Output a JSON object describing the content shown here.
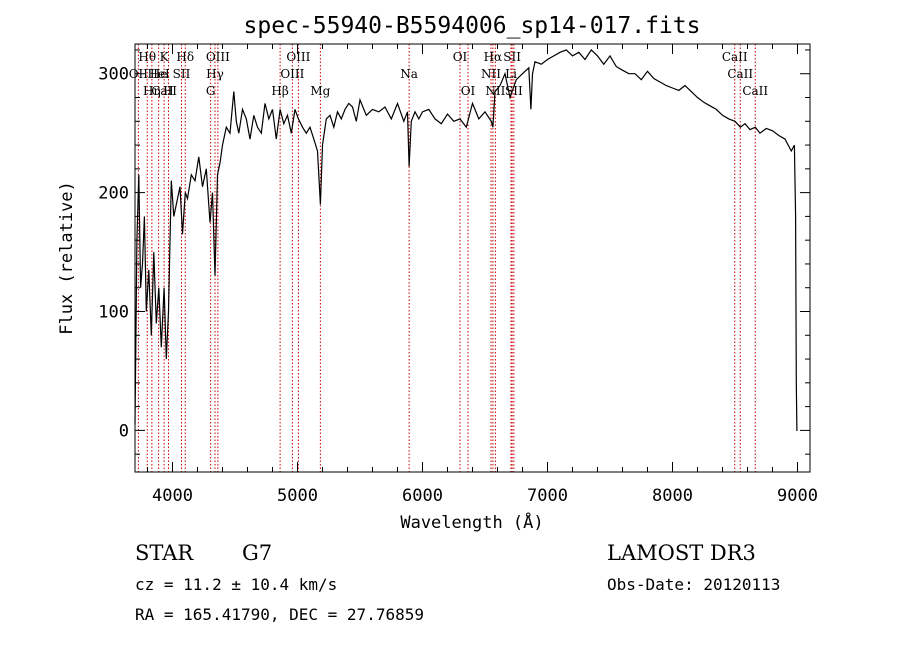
{
  "chart_data": {
    "type": "line",
    "title": "spec-55940-B5594006_sp14-017.fits",
    "xlabel": "Wavelength (Å)",
    "ylabel": "Flux (relative)",
    "xlim": [
      3700,
      9100
    ],
    "ylim": [
      -35,
      325
    ],
    "x_ticks": [
      4000,
      5000,
      6000,
      7000,
      8000,
      9000
    ],
    "y_ticks": [
      0,
      100,
      200,
      300
    ],
    "line_color": "#000000",
    "marker_color": "#cc0000",
    "series": [
      {
        "name": "flux",
        "x": [
          3700,
          3715,
          3730,
          3745,
          3760,
          3775,
          3790,
          3810,
          3830,
          3850,
          3870,
          3890,
          3910,
          3933,
          3950,
          3968,
          3990,
          4010,
          4030,
          4060,
          4080,
          4102,
          4120,
          4150,
          4180,
          4210,
          4240,
          4270,
          4300,
          4320,
          4340,
          4360,
          4380,
          4400,
          4430,
          4460,
          4490,
          4510,
          4530,
          4560,
          4590,
          4620,
          4650,
          4680,
          4710,
          4740,
          4770,
          4800,
          4830,
          4861,
          4890,
          4920,
          4950,
          4980,
          5007,
          5040,
          5070,
          5100,
          5130,
          5160,
          5183,
          5200,
          5230,
          5260,
          5290,
          5320,
          5350,
          5380,
          5410,
          5440,
          5470,
          5500,
          5550,
          5600,
          5650,
          5700,
          5750,
          5800,
          5850,
          5880,
          5893,
          5910,
          5940,
          5970,
          6000,
          6050,
          6100,
          6150,
          6200,
          6250,
          6300,
          6350,
          6400,
          6450,
          6500,
          6550,
          6563,
          6580,
          6620,
          6660,
          6700,
          6750,
          6800,
          6850,
          6867,
          6880,
          6900,
          6950,
          7000,
          7050,
          7100,
          7150,
          7200,
          7250,
          7300,
          7350,
          7400,
          7450,
          7500,
          7550,
          7600,
          7650,
          7700,
          7750,
          7800,
          7850,
          7900,
          7950,
          8000,
          8050,
          8100,
          8150,
          8200,
          8250,
          8300,
          8350,
          8400,
          8450,
          8500,
          8542,
          8580,
          8620,
          8662,
          8700,
          8750,
          8800,
          8850,
          8900,
          8950,
          8975,
          8985,
          8990,
          8995,
          9000
        ],
        "values": [
          5,
          160,
          215,
          120,
          140,
          180,
          100,
          135,
          80,
          150,
          90,
          120,
          70,
          120,
          60,
          100,
          210,
          180,
          190,
          205,
          165,
          200,
          195,
          215,
          210,
          230,
          205,
          220,
          175,
          200,
          130,
          215,
          225,
          240,
          255,
          250,
          285,
          260,
          250,
          270,
          262,
          245,
          265,
          255,
          250,
          275,
          262,
          270,
          245,
          270,
          258,
          265,
          250,
          270,
          262,
          255,
          250,
          255,
          245,
          235,
          190,
          240,
          262,
          265,
          255,
          268,
          262,
          270,
          275,
          272,
          260,
          278,
          265,
          270,
          268,
          272,
          262,
          275,
          260,
          268,
          222,
          260,
          268,
          262,
          268,
          270,
          262,
          258,
          266,
          260,
          262,
          255,
          275,
          262,
          268,
          260,
          255,
          285,
          290,
          300,
          280,
          295,
          300,
          305,
          270,
          300,
          310,
          308,
          312,
          315,
          318,
          320,
          315,
          318,
          312,
          320,
          315,
          308,
          315,
          306,
          303,
          300,
          300,
          295,
          302,
          296,
          293,
          290,
          288,
          286,
          290,
          285,
          280,
          276,
          273,
          270,
          265,
          262,
          260,
          255,
          258,
          253,
          255,
          250,
          254,
          252,
          248,
          245,
          235,
          240,
          180,
          40,
          0,
          0
        ]
      }
    ],
    "line_markers": [
      {
        "name": "Hθ",
        "x": 3798,
        "row": 1
      },
      {
        "name": "OII",
        "x": 3727,
        "row": 2
      },
      {
        "name": "Hη",
        "x": 3835,
        "row": 3
      },
      {
        "name": "CaII",
        "x": 3933,
        "row": 3
      },
      {
        "name": "He",
        "x": 3889,
        "row": 2
      },
      {
        "name": "HeI",
        "x": 3889,
        "row": 2
      },
      {
        "name": "K",
        "x": 3933,
        "row": 1
      },
      {
        "name": "H",
        "x": 3968,
        "row": 3
      },
      {
        "name": "SII",
        "x": 4072,
        "row": 2
      },
      {
        "name": "Hδ",
        "x": 4102,
        "row": 1
      },
      {
        "name": "OIII",
        "x": 4363,
        "row": 1
      },
      {
        "name": "Hγ",
        "x": 4340,
        "row": 2
      },
      {
        "name": "G",
        "x": 4305,
        "row": 3
      },
      {
        "name": "Hβ",
        "x": 4861,
        "row": 3
      },
      {
        "name": "OIII",
        "x": 4959,
        "row": 2
      },
      {
        "name": "OIII",
        "x": 5007,
        "row": 1
      },
      {
        "name": "Mg",
        "x": 5183,
        "row": 3
      },
      {
        "name": "Na",
        "x": 5893,
        "row": 2
      },
      {
        "name": "OI",
        "x": 6300,
        "row": 1
      },
      {
        "name": "OI",
        "x": 6364,
        "row": 3
      },
      {
        "name": "Hα",
        "x": 6563,
        "row": 1
      },
      {
        "name": "NII",
        "x": 6548,
        "row": 2
      },
      {
        "name": "NII",
        "x": 6583,
        "row": 3
      },
      {
        "name": "SII",
        "x": 6717,
        "row": 1
      },
      {
        "name": "Li",
        "x": 6708,
        "row": 2
      },
      {
        "name": "SII",
        "x": 6731,
        "row": 3
      },
      {
        "name": "CaII",
        "x": 8498,
        "row": 1
      },
      {
        "name": "CaII",
        "x": 8542,
        "row": 2
      },
      {
        "name": "CaII",
        "x": 8662,
        "row": 3
      }
    ]
  },
  "info": {
    "object_class": "STAR",
    "subclass": "G7",
    "survey": "LAMOST DR3",
    "cz": "cz = 11.2 ± 10.4 km/s",
    "obs_date": "Obs-Date: 20120113",
    "coords": "RA = 165.41790, DEC =  27.76859"
  }
}
